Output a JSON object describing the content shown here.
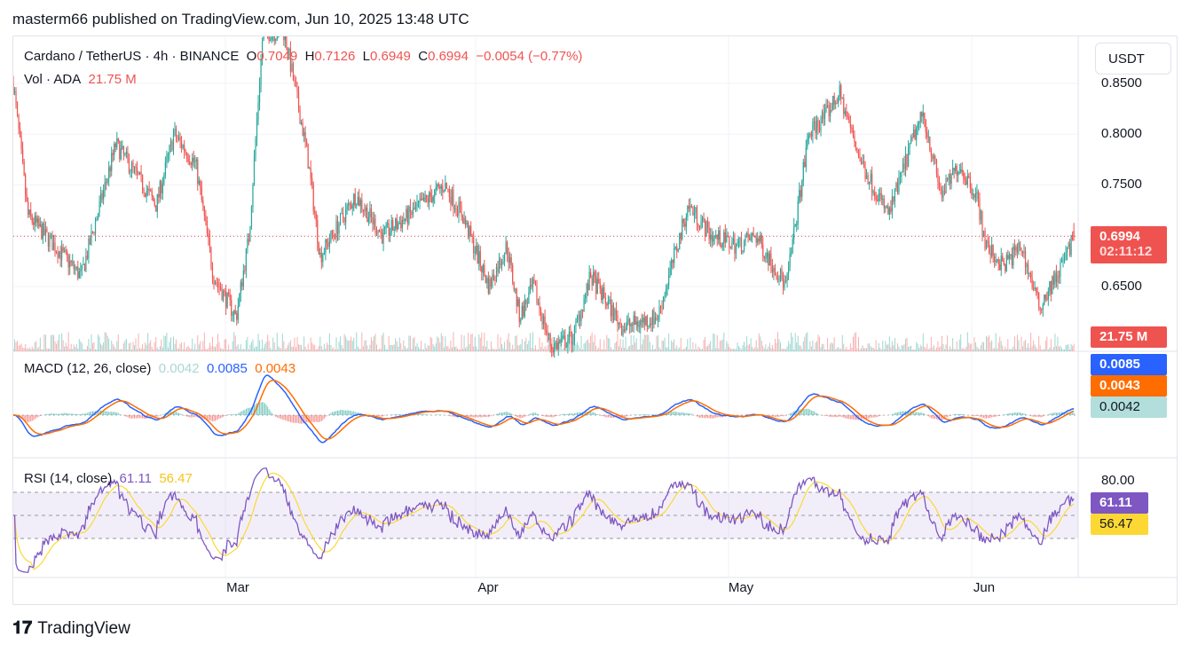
{
  "publisher": "masterm66 published on TradingView.com, Jun 10, 2025 13:48 UTC",
  "legend": {
    "symbol": "Cardano / TetherUS · 4h · BINANCE",
    "o_label": "O",
    "o": "0.7049",
    "h_label": "H",
    "h": "0.7126",
    "l_label": "L",
    "l": "0.6949",
    "c_label": "C",
    "c": "0.6994",
    "change": "−0.0054 (−0.77%)",
    "vol_label": "Vol · ADA",
    "vol": "21.75 M"
  },
  "macd_legend": {
    "label": "MACD (12, 26, close)",
    "hist": "0.0042",
    "macd": "0.0085",
    "signal": "0.0043"
  },
  "rsi_legend": {
    "label": "RSI (14, close)",
    "rsi": "61.11",
    "ma": "56.47"
  },
  "axis": {
    "currency": "USDT",
    "price_ticks": [
      "0.8500",
      "0.8000",
      "0.7500",
      "0.6500"
    ],
    "price_label": "0.6994",
    "countdown": "02:11:12",
    "vol_label": "21.75 M",
    "macd_labels": [
      "0.0085",
      "0.0043",
      "0.0042"
    ],
    "rsi_tick": "80.00",
    "rsi_labels": [
      "61.11",
      "56.47"
    ],
    "time_ticks": [
      "Mar",
      "Apr",
      "May",
      "Jun"
    ]
  },
  "colors": {
    "up": "#26a69a",
    "down": "#ef5350",
    "macd": "#2962ff",
    "signal": "#ff6d00",
    "rsi": "#7e57c2",
    "rsi_ma": "#fdd835"
  },
  "brand": "TradingView",
  "chart_data": {
    "type": "candlestick",
    "title": "Cardano / TetherUS · 4h · BINANCE",
    "x_unit": "days since Feb 1 2025",
    "ylim": [
      0.58,
      0.88
    ],
    "close_anchors": [
      [
        0,
        0.85
      ],
      [
        1.8,
        0.72
      ],
      [
        8.4,
        0.66
      ],
      [
        12.7,
        0.79
      ],
      [
        17.7,
        0.73
      ],
      [
        19.9,
        0.8
      ],
      [
        22.6,
        0.77
      ],
      [
        24.8,
        0.66
      ],
      [
        27.6,
        0.62
      ],
      [
        29.2,
        0.7
      ],
      [
        30.9,
        0.9
      ],
      [
        33.6,
        0.9
      ],
      [
        36.4,
        0.78
      ],
      [
        38,
        0.68
      ],
      [
        42.4,
        0.74
      ],
      [
        45.7,
        0.7
      ],
      [
        49,
        0.72
      ],
      [
        53.4,
        0.75
      ],
      [
        55.6,
        0.72
      ],
      [
        58.9,
        0.65
      ],
      [
        61.1,
        0.69
      ],
      [
        62.7,
        0.62
      ],
      [
        64.4,
        0.65
      ],
      [
        66.6,
        0.59
      ],
      [
        69.3,
        0.6
      ],
      [
        71.5,
        0.66
      ],
      [
        75.4,
        0.61
      ],
      [
        79.8,
        0.62
      ],
      [
        83.6,
        0.73
      ],
      [
        86.4,
        0.7
      ],
      [
        89.7,
        0.69
      ],
      [
        91.9,
        0.7
      ],
      [
        95.7,
        0.65
      ],
      [
        98.5,
        0.8
      ],
      [
        100.7,
        0.82
      ],
      [
        102.3,
        0.84
      ],
      [
        105.1,
        0.77
      ],
      [
        108.4,
        0.72
      ],
      [
        111.6,
        0.8
      ],
      [
        112.7,
        0.82
      ],
      [
        114.9,
        0.74
      ],
      [
        117.1,
        0.77
      ],
      [
        119.3,
        0.74
      ],
      [
        120.4,
        0.69
      ],
      [
        122.6,
        0.67
      ],
      [
        124.8,
        0.69
      ],
      [
        127,
        0.63
      ],
      [
        129.2,
        0.66
      ],
      [
        131.4,
        0.6994
      ]
    ],
    "last": {
      "open": 0.7049,
      "high": 0.7126,
      "low": 0.6949,
      "close": 0.6994,
      "volume_m": 21.75
    },
    "indicators": {
      "macd": {
        "params": "12, 26, close",
        "macd": 0.0085,
        "signal": 0.0043,
        "hist": 0.0042
      },
      "rsi": {
        "params": "14, close",
        "rsi": 61.11,
        "ma": 56.47,
        "bands": [
          30,
          70
        ]
      }
    }
  }
}
